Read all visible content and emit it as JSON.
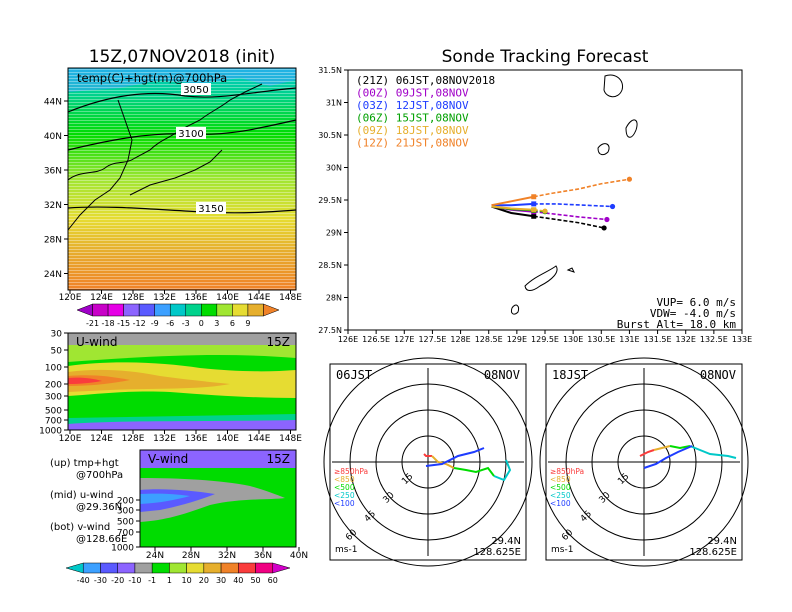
{
  "left": {
    "title": "15Z,07NOV2018 (init)",
    "map": {
      "label": "temp(C)+hgt(m)@700hPa",
      "contours": [
        "3050",
        "3100",
        "3150"
      ],
      "lat_ticks": [
        "44N",
        "40N",
        "36N",
        "32N",
        "28N",
        "24N"
      ],
      "lon_ticks": [
        "120E",
        "124E",
        "128E",
        "132E",
        "136E",
        "140E",
        "144E",
        "148E"
      ],
      "colorbar": [
        "-21",
        "-18",
        "-15",
        "-12",
        "-9",
        "-6",
        "-3",
        "0",
        "3",
        "6",
        "9"
      ],
      "colorbar_colors": [
        "#a000c8",
        "#c800c8",
        "#e600e6",
        "#8c64ff",
        "#5a5aff",
        "#3ca0ff",
        "#00c8c8",
        "#00d28c",
        "#00dc00",
        "#a0e632",
        "#e6dc32",
        "#e6af2d",
        "#f08228"
      ]
    },
    "uwind": {
      "label": "U-wind",
      "time": "15Z",
      "p_ticks": [
        "30",
        "50",
        "100",
        "200",
        "300",
        "500",
        "700",
        "1000"
      ],
      "lon_ticks": [
        "120E",
        "124E",
        "128E",
        "132E",
        "136E",
        "140E",
        "144E",
        "148E"
      ]
    },
    "vwind": {
      "label": "V-wind",
      "time": "15Z",
      "p_ticks": [
        "200",
        "300",
        "500",
        "700",
        "1000"
      ],
      "lat_ticks": [
        "24N",
        "28N",
        "32N",
        "36N",
        "40N"
      ]
    },
    "legend": {
      "up": "(up)  tmp+hgt",
      "up2": "@700hPa",
      "mid": "(mid) u-wind",
      "mid2": "@29.36N",
      "bot": "(bot) v-wind",
      "bot2": "@128.66E"
    },
    "wind_colorbar": [
      "-40",
      "-30",
      "-20",
      "-10",
      "-1",
      "1",
      "10",
      "20",
      "30",
      "40",
      "50",
      "60"
    ],
    "wind_colorbar_colors": [
      "#00c8c8",
      "#3ca0ff",
      "#5a5aff",
      "#8c64ff",
      "#a0a0a0",
      "#00dc00",
      "#a0e632",
      "#e6dc32",
      "#e6af2d",
      "#f08228",
      "#fa3c3c",
      "#f00082",
      "#d200c8"
    ]
  },
  "right": {
    "title": "Sonde Tracking Forecast",
    "track_legend": [
      {
        "text": "(21Z) 06JST,08NOV2018",
        "color": "#000000"
      },
      {
        "text": "(00Z) 09JST,08NOV",
        "color": "#a000c8"
      },
      {
        "text": "(03Z) 12JST,08NOV",
        "color": "#1e3cff"
      },
      {
        "text": "(06Z) 15JST,08NOV",
        "color": "#00a000"
      },
      {
        "text": "(09Z) 18JST,08NOV",
        "color": "#e6af2d"
      },
      {
        "text": "(12Z) 21JST,08NOV",
        "color": "#f08228"
      }
    ],
    "lat_ticks": [
      "31.5N",
      "31N",
      "30.5N",
      "30N",
      "29.5N",
      "29N",
      "28.5N",
      "28N",
      "27.5N"
    ],
    "lon_ticks": [
      "126E",
      "126.5E",
      "127E",
      "127.5E",
      "128E",
      "128.5E",
      "129E",
      "129.5E",
      "130E",
      "130.5E",
      "131E",
      "131.5E",
      "132E",
      "132.5E",
      "133E"
    ],
    "params": [
      "VUP=  6.0  m/s",
      "VDW= -4.0  m/s",
      "Burst Alt= 18.0  km"
    ]
  },
  "hodo_left": {
    "label": "06JST",
    "date": "08NOV",
    "rings": [
      "15",
      "30",
      "45",
      "60"
    ],
    "pressure_legend": [
      "≥850hPa",
      "<850",
      "<500",
      "<250",
      "<100"
    ],
    "unit": "ms-1",
    "lat": "29.4N",
    "lon": "128.625E"
  },
  "hodo_right": {
    "label": "18JST",
    "date": "08NOV",
    "rings": [
      "15",
      "30",
      "45",
      "60"
    ],
    "pressure_legend": [
      "≥850hPa",
      "<850",
      "<500",
      "<250",
      "<100"
    ],
    "unit": "ms-1",
    "lat": "29.4N",
    "lon": "128.625E"
  },
  "chart_data": [
    {
      "type": "heatmap",
      "title": "15Z,07NOV2018 (init)",
      "field": "temp(C)+hgt(m)@700hPa",
      "x_ticks": [
        "120E",
        "124E",
        "128E",
        "132E",
        "136E",
        "140E",
        "144E",
        "148E"
      ],
      "y_ticks": [
        "24N",
        "28N",
        "32N",
        "36N",
        "40N",
        "44N"
      ],
      "contour_labels": [
        3050,
        3100,
        3150
      ],
      "colorbar": [
        -21,
        -18,
        -15,
        -12,
        -9,
        -6,
        -3,
        0,
        3,
        6,
        9
      ]
    },
    {
      "type": "line",
      "title": "Sonde Tracking Forecast",
      "xlabel": "",
      "ylabel": "",
      "xlim": [
        126,
        133
      ],
      "ylim": [
        27.5,
        31.5
      ],
      "series": [
        {
          "name": "(21Z) 06JST,08NOV2018",
          "color": "#000000",
          "lon": [
            128.55,
            128.9,
            129.3,
            129.7,
            130.1,
            130.55
          ],
          "lat": [
            29.4,
            29.3,
            29.25,
            29.2,
            29.15,
            29.07
          ]
        },
        {
          "name": "(00Z) 09JST,08NOV",
          "color": "#a000c8",
          "lon": [
            128.55,
            128.9,
            129.3,
            129.7,
            130.1,
            130.6
          ],
          "lat": [
            29.4,
            29.35,
            29.32,
            29.28,
            29.24,
            29.2
          ]
        },
        {
          "name": "(03Z) 12JST,08NOV",
          "color": "#1e3cff",
          "lon": [
            128.55,
            128.9,
            129.3,
            129.7,
            130.2,
            130.7
          ],
          "lat": [
            29.42,
            29.42,
            29.44,
            29.44,
            29.42,
            29.4
          ]
        },
        {
          "name": "(06Z) 15JST,08NOV",
          "color": "#00a000",
          "lon": [
            128.55,
            128.9,
            129.3,
            129.5
          ],
          "lat": [
            29.4,
            29.36,
            29.34,
            29.32
          ]
        },
        {
          "name": "(09Z) 18JST,08NOV",
          "color": "#e6af2d",
          "lon": [
            128.55,
            128.9,
            129.3,
            129.5
          ],
          "lat": [
            29.4,
            29.37,
            29.35,
            29.33
          ]
        },
        {
          "name": "(12Z) 21JST,08NOV",
          "color": "#f08228",
          "lon": [
            128.55,
            128.9,
            129.3,
            129.6,
            130.1,
            130.5,
            131.0
          ],
          "lat": [
            29.42,
            29.48,
            29.55,
            29.6,
            29.67,
            29.75,
            29.82
          ]
        }
      ],
      "annotations": [
        "VUP=  6.0  m/s",
        "VDW= -4.0  m/s",
        "Burst Alt= 18.0  km"
      ]
    }
  ]
}
